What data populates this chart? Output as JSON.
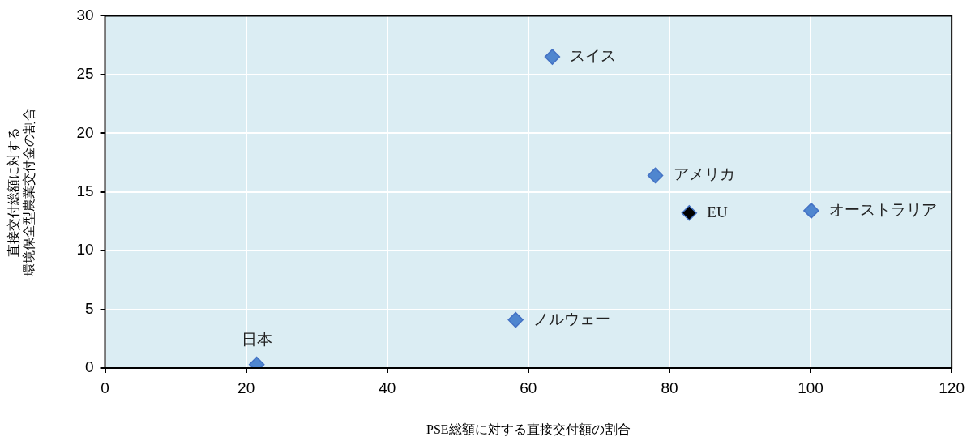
{
  "chart_data": {
    "type": "scatter",
    "xlabel": "PSE総額に対する直接交付額の割合",
    "ylabel": "直接交付総額に対する環境保全型農業交付金の割合",
    "series": [
      {
        "x": [
          21.5,
          58.2,
          63.4,
          78,
          82.8,
          100.1
        ],
        "values": [
          0.3,
          4.1,
          26.5,
          16.4,
          13.2,
          13.4
        ],
        "colors": [
          "#4f86cf",
          "#4f86cf",
          "#4f86cf",
          "#4f86cf",
          "#000000",
          "#4f86cf"
        ]
      }
    ],
    "xlim": [
      0,
      120
    ],
    "xticks": [
      0,
      20,
      40,
      60,
      80,
      100,
      120
    ],
    "ylim": [
      0,
      30
    ],
    "yticks": [
      0,
      5,
      10,
      15,
      20,
      25,
      30
    ],
    "grid": true,
    "legend": false,
    "marker": "diamond",
    "annotations": [
      {
        "text": "日本",
        "x": 21.5,
        "y": 0.3
      },
      {
        "text": "ノルウェー",
        "x": 58.2,
        "y": 4.1
      },
      {
        "text": "スイス",
        "x": 63.4,
        "y": 26.5
      },
      {
        "text": "アメリカ",
        "x": 78,
        "y": 16.4
      },
      {
        "text": "EU",
        "x": 82.8,
        "y": 13.2
      },
      {
        "text": "オーストラリア",
        "x": 100.1,
        "y": 13.4
      }
    ]
  }
}
